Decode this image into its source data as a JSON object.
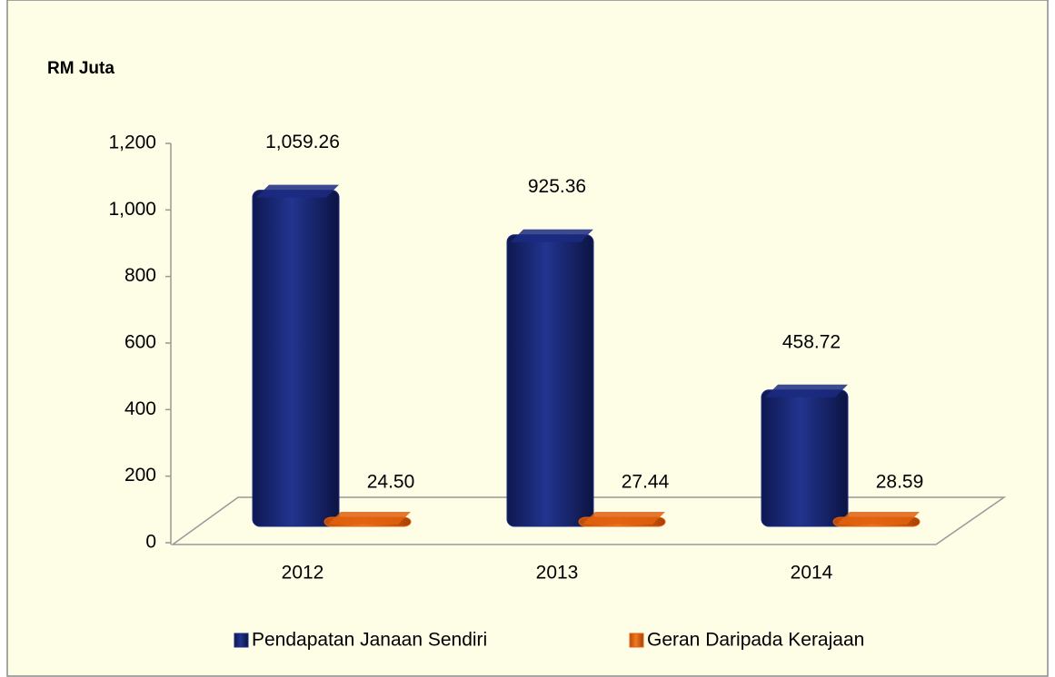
{
  "chart_data": {
    "type": "bar",
    "y_axis_label": "RM Juta",
    "categories": [
      "2012",
      "2013",
      "2014"
    ],
    "series": [
      {
        "name": "Pendapatan Janaan Sendiri",
        "color": "#1b2a80",
        "values": [
          1059.26,
          925.36,
          458.72
        ],
        "value_labels": [
          "1,059.26",
          "925.36",
          "458.72"
        ]
      },
      {
        "name": "Geran Daripada Kerajaan",
        "color": "#e0600f",
        "values": [
          24.5,
          27.44,
          28.59
        ],
        "value_labels": [
          "24.50",
          "27.44",
          "28.59"
        ]
      }
    ],
    "ylim": [
      0,
      1200
    ],
    "yticks": [
      0,
      200,
      400,
      600,
      800,
      {
        "value": 1000,
        "label": "1,000"
      },
      {
        "value": 1200,
        "label": "1,200"
      }
    ],
    "legend": "bottom"
  }
}
